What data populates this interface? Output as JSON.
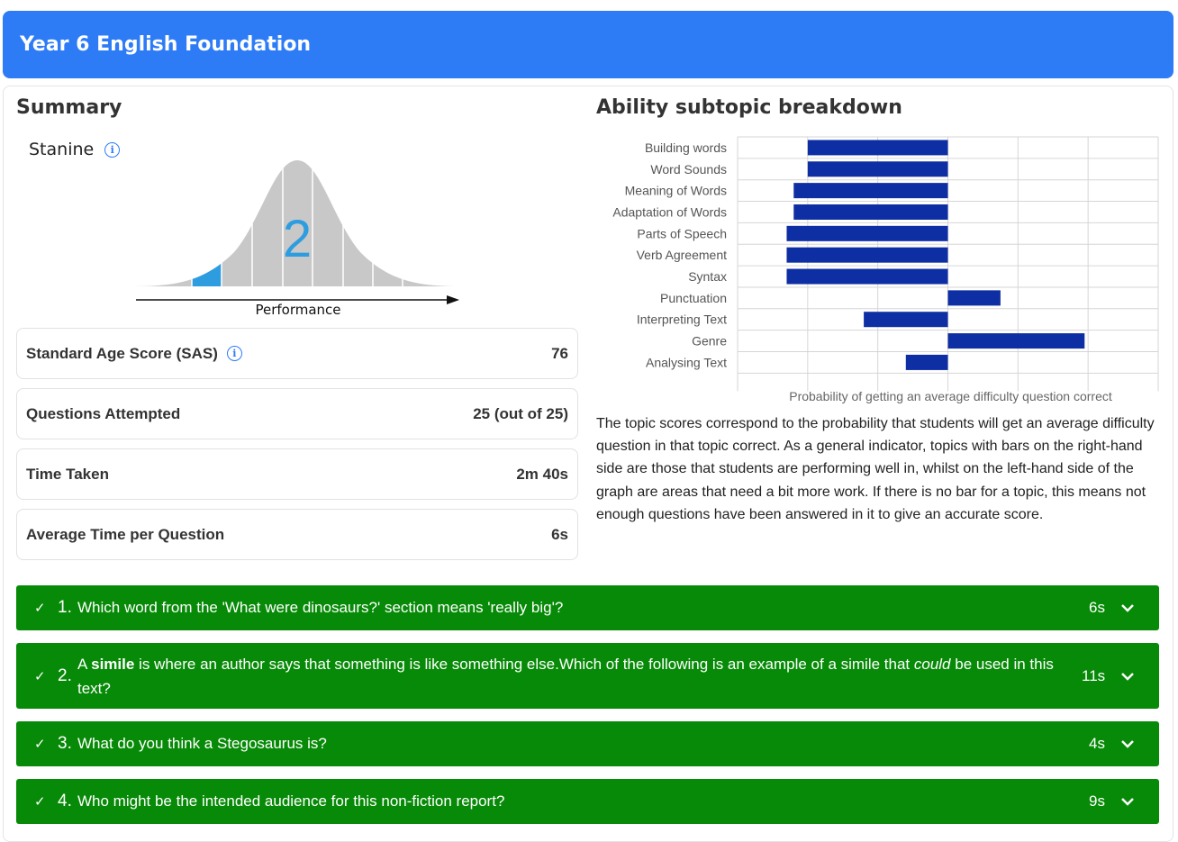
{
  "header": {
    "title": "Year 6 English Foundation"
  },
  "summary": {
    "title": "Summary",
    "stanine_label": "Stanine",
    "stanine_value": "2",
    "performance_label": "Performance",
    "stats": [
      {
        "label": "Standard Age Score (SAS)",
        "value": "76",
        "has_info": true
      },
      {
        "label": "Questions Attempted",
        "value": "25 (out of 25)",
        "has_info": false
      },
      {
        "label": "Time Taken",
        "value": "2m 40s",
        "has_info": false
      },
      {
        "label": "Average Time per Question",
        "value": "6s",
        "has_info": false
      }
    ]
  },
  "breakdown": {
    "title": "Ability subtopic breakdown",
    "description": "The topic scores correspond to the probability that students will get an average difficulty question in that topic correct. As a general indicator, topics with bars on the right-hand side are those that students are performing well in, whilst on the left-hand side of the graph are areas that need a bit more work. If there is no bar for a topic, this means not enough questions have been answered in it to give an accurate score."
  },
  "chart_data": {
    "type": "bar",
    "orientation": "horizontal",
    "categories": [
      "Building words",
      "Word Sounds",
      "Meaning of Words",
      "Adaptation of Words",
      "Parts of Speech",
      "Verb Agreement",
      "Syntax",
      "Punctuation",
      "Interpreting Text",
      "Genre",
      "Analysing Text"
    ],
    "values": [
      -2.0,
      -2.0,
      -2.2,
      -2.2,
      -2.3,
      -2.3,
      -2.3,
      0.75,
      -1.2,
      1.95,
      -0.6
    ],
    "xlim": [
      -3,
      3
    ],
    "xlabel": "Probability of getting an average difficulty question correct",
    "grid": true,
    "bar_color": "#0e2ea3"
  },
  "questions": [
    {
      "num": "1.",
      "text": "Which word from the 'What were dinosaurs?' section means 'really big'?",
      "time": "6s"
    },
    {
      "num": "2.",
      "text_pre": "A ",
      "text_bold": "simile",
      "text_mid": " is where an author says that something is like something else.Which of the following is an example of a simile that ",
      "text_italic": "could",
      "text_post": " be used in this text?",
      "time": "11s"
    },
    {
      "num": "3.",
      "text": "What do you think a Stegosaurus is?",
      "time": "4s"
    },
    {
      "num": "4.",
      "text": "Who might be the intended audience for this non-fiction report?",
      "time": "9s"
    }
  ],
  "colors": {
    "accent": "#2d7cf6",
    "correct_green": "#078a07",
    "stanine_highlight": "#2e9de0",
    "bell_grey": "#c8c8c8"
  }
}
